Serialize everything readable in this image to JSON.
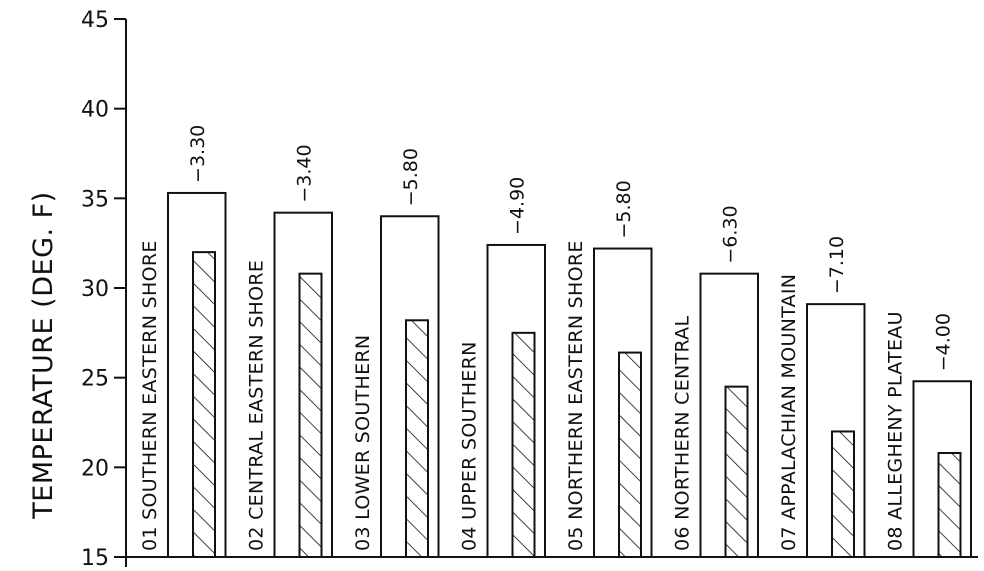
{
  "chart_data": {
    "type": "bar",
    "ylabel": "TEMPERATURE (DEG. F)",
    "ylim": [
      15,
      45
    ],
    "yticks": [
      15,
      20,
      25,
      30,
      35,
      40,
      45
    ],
    "grid": false,
    "categories": [
      "01 SOUTHERN EASTERN SHORE",
      "02 CENTRAL EASTERN SHORE",
      "03 LOWER SOUTHERN",
      "04 UPPER SOUTHERN",
      "05 NORTHERN EASTERN SHORE",
      "06 NORTHERN CENTRAL",
      "07 APPALACHIAN MOUNTAIN",
      "08 ALLEGHENY PLATEAU"
    ],
    "series": [
      {
        "values": [
          35.3,
          34.2,
          34.0,
          32.4,
          32.2,
          30.8,
          29.1,
          24.8
        ]
      },
      {
        "values": [
          32.0,
          30.8,
          28.2,
          27.5,
          26.4,
          24.5,
          22.0,
          20.8
        ]
      }
    ],
    "annotations": [
      "−3.30",
      "−3.40",
      "−5.80",
      "−4.90",
      "−5.80",
      "−6.30",
      "−7.10",
      "−4.00"
    ]
  }
}
